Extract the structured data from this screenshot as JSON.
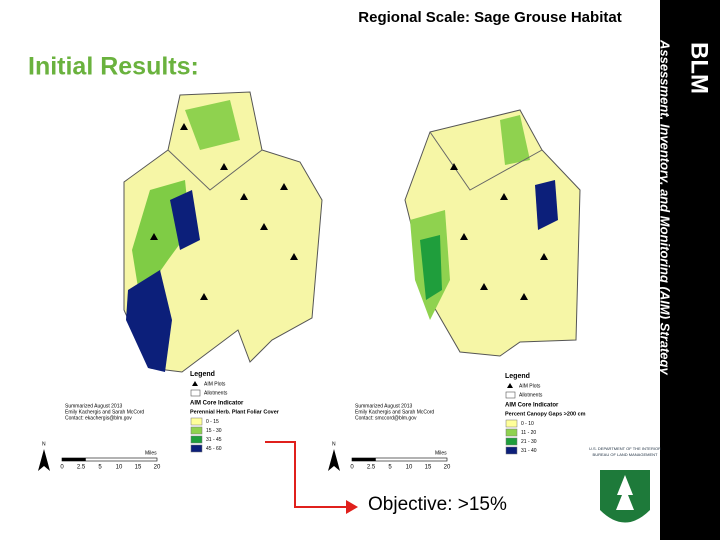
{
  "header": {
    "title": "Regional Scale: Sage Grouse Habitat",
    "section": "Initial Results:"
  },
  "sidebar": {
    "acronym": "BLM",
    "strategy": "Assessment, Inventory, and Monitoring (AIM) Strategy"
  },
  "maps": [
    {
      "legend_title": "Legend",
      "plots": "AIM Plots",
      "allotments": "Allotments",
      "indicator_title": "AIM Core Indicator",
      "indicator": "Perennial Herb. Plant Foliar Cover",
      "classes": [
        {
          "label": "0 - 15",
          "color": "#ffff99"
        },
        {
          "label": "15 - 30",
          "color": "#8fd24f"
        },
        {
          "label": "31 - 45",
          "color": "#1f9e3c"
        },
        {
          "label": "45 - 60",
          "color": "#0c1f7a"
        }
      ],
      "credit": [
        "Summarized August 2013",
        "Emily Kachergis and Sarah McCord",
        "Contact: ekachergis@blm.gov"
      ],
      "north": "N",
      "scale_unit": "Miles",
      "scale_ticks": [
        "0",
        "2.5",
        "5",
        "10",
        "15",
        "20"
      ]
    },
    {
      "legend_title": "Legend",
      "plots": "AIM Plots",
      "allotments": "Allotments",
      "indicator_title": "AIM Core Indicator",
      "indicator": "Percent Canopy Gaps >200 cm",
      "classes": [
        {
          "label": "0 - 10",
          "color": "#ffff99"
        },
        {
          "label": "11 - 20",
          "color": "#8fd24f"
        },
        {
          "label": "21 - 30",
          "color": "#1f9e3c"
        },
        {
          "label": "31 - 40",
          "color": "#0c1f7a"
        }
      ],
      "credit": [
        "Summarized August 2013",
        "Emily Kachergis and Sarah McCord",
        "Contact: smccord@blm.gov"
      ],
      "north": "N",
      "scale_unit": "Miles",
      "scale_ticks": [
        "0",
        "2.5",
        "5",
        "10",
        "15",
        "20"
      ]
    }
  ],
  "callout": "Objective: >15%",
  "logo": {
    "line1": "U.S. DEPARTMENT OF THE INTERIOR",
    "line2": "BUREAU OF LAND MANAGEMENT"
  }
}
